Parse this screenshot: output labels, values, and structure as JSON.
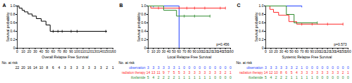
{
  "chart_data": [
    {
      "type": "line",
      "panel": "A",
      "x_label": "Overall Relapse Free Survival",
      "y_label": "Survival probability",
      "xlim": [
        0,
        160
      ],
      "xticks": [
        0,
        10,
        20,
        30,
        40,
        50,
        60,
        70,
        80,
        90,
        100,
        110,
        120,
        130,
        140,
        150,
        160
      ],
      "ylim": [
        0,
        1
      ],
      "yticks": [
        0,
        0.2,
        0.4,
        0.6,
        0.8,
        {
          "value": 1,
          "label": "1.0"
        }
      ],
      "series": [
        {
          "color": "#000000",
          "line_style": "step",
          "marker": "tick",
          "x": [
            0,
            3,
            8,
            12,
            18,
            25,
            32,
            40,
            48,
            55,
            150
          ],
          "values": [
            1,
            0.95,
            0.9,
            0.86,
            0.81,
            0.76,
            0.7,
            0.64,
            0.55,
            0.4,
            0.4
          ],
          "censored": {
            "x": [
              60,
              68,
              75,
              90,
              100,
              148
            ],
            "values": [
              0.4,
              0.4,
              0.4,
              0.4,
              0.4,
              0.4
            ]
          }
        }
      ],
      "at_risk": {
        "title": "No. at risk",
        "x": [
          0,
          10,
          20,
          30,
          40,
          50,
          60,
          70,
          80,
          90,
          100,
          110,
          120,
          130,
          140,
          150,
          160
        ],
        "rows": [
          {
            "color": "#000000",
            "values": [
              22,
              20,
              16,
              14,
              10,
              8,
              6,
              4,
              3,
              3,
              3,
              3,
              3,
              3,
              3,
              2,
              1
            ]
          }
        ]
      }
    },
    {
      "type": "line",
      "panel": "B",
      "x_label": "Local Relapse Free Survival",
      "y_label": "Survival probability",
      "annotation": "p=0.456",
      "xlim": [
        0,
        160
      ],
      "xticks": [
        0,
        10,
        20,
        30,
        40,
        50,
        60,
        70,
        80,
        90,
        100,
        110,
        120,
        130,
        140,
        150,
        160
      ],
      "ylim": [
        0,
        1
      ],
      "yticks": [
        0,
        0.2,
        0.4,
        0.6,
        0.8,
        {
          "value": 1,
          "label": "1.0"
        }
      ],
      "series": [
        {
          "name": "observation",
          "color": "#1f3fff",
          "line_style": "step",
          "marker": "tick",
          "x": [
            0,
            60
          ],
          "values": [
            1,
            0
          ],
          "censored": {
            "x": [
              10
            ],
            "values": [
              1
            ]
          }
        },
        {
          "name": "radiation therapy",
          "color": "#ff2a2a",
          "line_style": "step",
          "marker": "tick",
          "x": [
            0,
            5,
            150
          ],
          "values": [
            1,
            0.95,
            0.95
          ],
          "censored": {
            "x": [
              20,
              60,
              75,
              90,
              110,
              140,
              150
            ],
            "values": [
              0.95,
              0.95,
              0.95,
              0.95,
              0.95,
              0.95,
              0.95
            ]
          }
        },
        {
          "name": "ifosfamide",
          "color": "#2e8b2e",
          "line_style": "step",
          "marker": "tick",
          "x": [
            0,
            30,
            55,
            120
          ],
          "values": [
            1,
            0.9,
            0.76,
            0.76
          ],
          "censored": {
            "x": [
              70,
              90,
              120
            ],
            "values": [
              0.76,
              0.76,
              0.76
            ]
          }
        }
      ],
      "at_risk": {
        "title": "No. at risk",
        "x": [
          0,
          10,
          20,
          30,
          40,
          50,
          60,
          70,
          80,
          90,
          100,
          110,
          120,
          130,
          140,
          150,
          160
        ],
        "rows": [
          {
            "name": "observation",
            "color": "#1f3fff",
            "values": [
              3,
              3,
              3,
              3,
              3,
              3,
              1,
              0,
              0,
              0,
              0,
              0,
              0,
              0,
              0,
              0,
              0
            ]
          },
          {
            "name": "radiation therapy",
            "color": "#ff2a2a",
            "values": [
              14,
              13,
              11,
              9,
              7,
              5,
              5,
              3,
              3,
              3,
              3,
              3,
              3,
              3,
              3,
              2,
              1
            ]
          },
          {
            "name": "ifosfamide",
            "color": "#2e8b2e",
            "values": [
              5,
              4,
              2,
              2,
              2,
              2,
              1,
              1,
              1,
              1,
              1,
              1,
              1,
              0,
              0,
              0,
              0
            ]
          }
        ]
      }
    },
    {
      "type": "line",
      "panel": "C",
      "x_label": "Systemic Relapse Free Survival",
      "y_label": "Survival probability",
      "annotation": "p=0.573",
      "xlim": [
        0,
        160
      ],
      "xticks": [
        0,
        10,
        20,
        30,
        40,
        50,
        60,
        70,
        80,
        90,
        100,
        110,
        120,
        130,
        140,
        150,
        160
      ],
      "ylim": [
        0,
        1
      ],
      "yticks": [
        0,
        0.2,
        0.4,
        0.6,
        0.8,
        {
          "value": 1,
          "label": "1.0"
        }
      ],
      "series": [
        {
          "name": "observation",
          "color": "#1f3fff",
          "line_style": "step",
          "marker": "tick",
          "x": [
            0,
            70
          ],
          "values": [
            1,
            1
          ],
          "censored": {
            "x": [
              70
            ],
            "values": [
              1
            ]
          }
        },
        {
          "name": "radiation therapy",
          "color": "#ff2a2a",
          "line_style": "step",
          "marker": "tick",
          "x": [
            0,
            8,
            15,
            25,
            45,
            60,
            150
          ],
          "values": [
            1,
            0.92,
            0.85,
            0.78,
            0.63,
            0.57,
            0.57
          ],
          "censored": {
            "x": [
              70,
              90,
              120,
              150
            ],
            "values": [
              0.57,
              0.57,
              0.57,
              0.57
            ]
          }
        },
        {
          "name": "ifosfamide",
          "color": "#2e8b2e",
          "line_style": "step",
          "marker": "tick",
          "x": [
            0,
            40,
            55,
            100
          ],
          "values": [
            1,
            0.8,
            0.6,
            0.6
          ],
          "censored": {
            "x": [
              100
            ],
            "values": [
              0.6
            ]
          }
        }
      ],
      "at_risk": {
        "title": "No. at risk",
        "x": [
          0,
          10,
          20,
          30,
          40,
          50,
          60,
          70,
          80,
          90,
          100,
          110,
          120,
          130,
          140,
          150,
          160
        ],
        "rows": [
          {
            "name": "observation",
            "color": "#1f3fff",
            "values": [
              3,
              3,
              3,
              3,
              3,
              3,
              2,
              1,
              0,
              0,
              0,
              0,
              0,
              0,
              0,
              0,
              0
            ]
          },
          {
            "name": "radiation therapy",
            "color": "#ff2a2a",
            "values": [
              14,
              12,
              10,
              8,
              6,
              5,
              4,
              3,
              3,
              3,
              3,
              3,
              3,
              3,
              3,
              2,
              1
            ]
          },
          {
            "name": "ifosfamide",
            "color": "#2e8b2e",
            "values": [
              5,
              4,
              2,
              2,
              2,
              1,
              1,
              1,
              1,
              1,
              0,
              0,
              0,
              0,
              0,
              0,
              0
            ]
          }
        ]
      }
    }
  ]
}
